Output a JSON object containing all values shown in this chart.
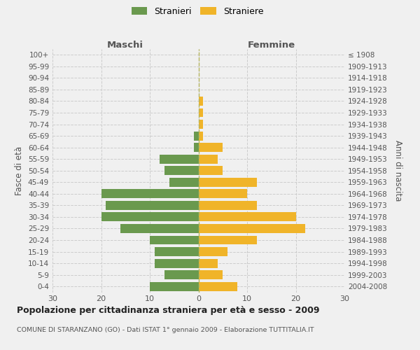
{
  "age_groups": [
    "0-4",
    "5-9",
    "10-14",
    "15-19",
    "20-24",
    "25-29",
    "30-34",
    "35-39",
    "40-44",
    "45-49",
    "50-54",
    "55-59",
    "60-64",
    "65-69",
    "70-74",
    "75-79",
    "80-84",
    "85-89",
    "90-94",
    "95-99",
    "100+"
  ],
  "birth_years": [
    "2004-2008",
    "1999-2003",
    "1994-1998",
    "1989-1993",
    "1984-1988",
    "1979-1983",
    "1974-1978",
    "1969-1973",
    "1964-1968",
    "1959-1963",
    "1954-1958",
    "1949-1953",
    "1944-1948",
    "1939-1943",
    "1934-1938",
    "1929-1933",
    "1924-1928",
    "1919-1923",
    "1914-1918",
    "1909-1913",
    "≤ 1908"
  ],
  "males": [
    10,
    7,
    9,
    9,
    10,
    16,
    20,
    19,
    20,
    6,
    7,
    8,
    1,
    1,
    0,
    0,
    0,
    0,
    0,
    0,
    0
  ],
  "females": [
    8,
    5,
    4,
    6,
    12,
    22,
    20,
    12,
    10,
    12,
    5,
    4,
    5,
    1,
    1,
    1,
    1,
    0,
    0,
    0,
    0
  ],
  "male_color": "#6a994e",
  "female_color": "#f0b429",
  "background_color": "#f0f0f0",
  "grid_color": "#cccccc",
  "title": "Popolazione per cittadinanza straniera per età e sesso - 2009",
  "subtitle": "COMUNE DI STARANZANO (GO) - Dati ISTAT 1° gennaio 2009 - Elaborazione TUTTITALIA.IT",
  "xlabel_left": "Maschi",
  "xlabel_right": "Femmine",
  "ylabel_left": "Fasce di età",
  "ylabel_right": "Anni di nascita",
  "legend_male": "Stranieri",
  "legend_female": "Straniere",
  "xlim": 30,
  "dashed_line_color": "#b5b560"
}
